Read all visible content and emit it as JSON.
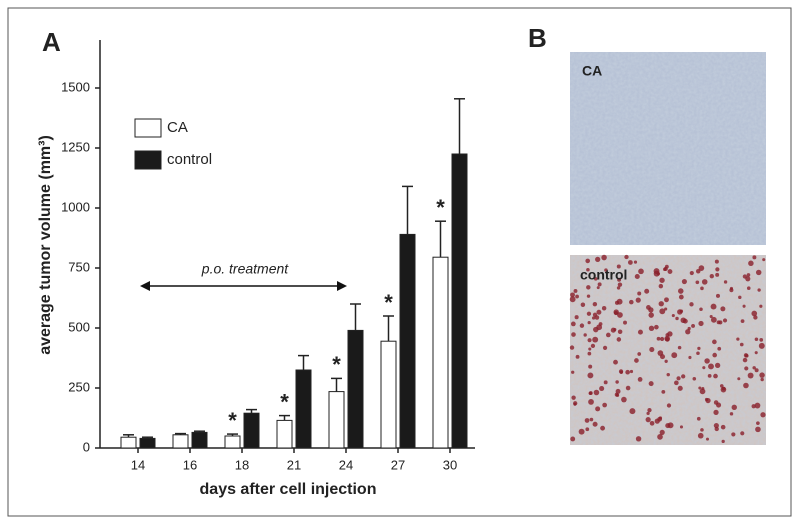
{
  "chart_data": {
    "type": "bar",
    "panel_label": "A",
    "xlabel": "days after cell injection",
    "ylabel": "average tumor volume (mm³)",
    "categories": [
      "14",
      "16",
      "18",
      "21",
      "24",
      "27",
      "30"
    ],
    "series": [
      {
        "name": "CA",
        "color": "#ffffff",
        "values": [
          45,
          55,
          50,
          115,
          235,
          445,
          795
        ],
        "errors": [
          10,
          5,
          8,
          20,
          55,
          105,
          150
        ],
        "significance": [
          null,
          null,
          "*",
          "*",
          "*",
          "*",
          "*"
        ]
      },
      {
        "name": "control",
        "color": "#1a1a1a",
        "values": [
          40,
          65,
          145,
          325,
          490,
          890,
          1225
        ],
        "errors": [
          5,
          5,
          15,
          60,
          110,
          200,
          230
        ]
      }
    ],
    "annotation": "p.o. treatment",
    "ylim": [
      0,
      1700
    ],
    "yticks": [
      0,
      250,
      500,
      750,
      1000,
      1250,
      1500
    ],
    "grid": false
  },
  "images": {
    "panel_label": "B",
    "labels": [
      "CA",
      "control"
    ]
  }
}
